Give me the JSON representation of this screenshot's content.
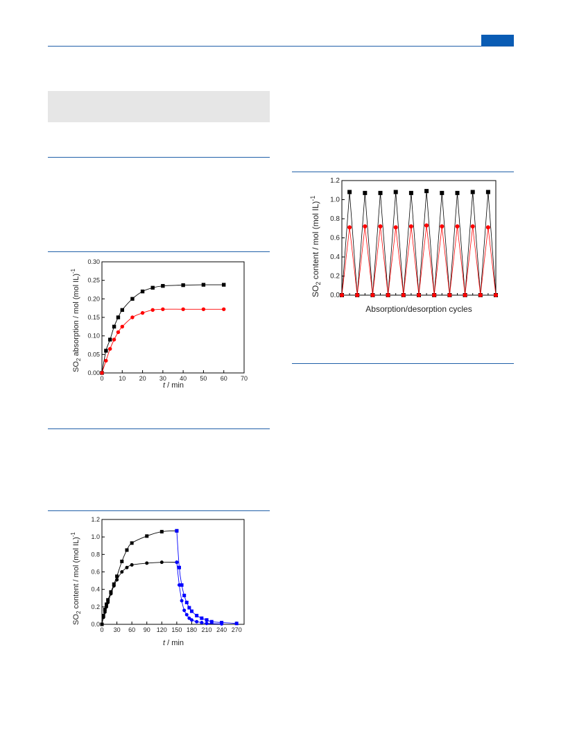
{
  "page": {
    "accent_color": "#1f5fa8",
    "tab_color": "#0a5cb4",
    "shade_color": "#e6e6e6"
  },
  "chart_data": [
    {
      "type": "scatter",
      "xlabel": "t / min",
      "ylabel": "SO2 absorption / mol (mol IL)-1",
      "xlim": [
        0,
        70
      ],
      "ylim": [
        0,
        0.3
      ],
      "xticks": [
        "0",
        "10",
        "20",
        "30",
        "40",
        "50",
        "60",
        "70"
      ],
      "yticks": [
        "0.00",
        "0.05",
        "0.10",
        "0.15",
        "0.20",
        "0.25",
        "0.30"
      ],
      "series": [
        {
          "marker": "square",
          "color": "#000000",
          "line_color": "#000000",
          "points": [
            [
              0,
              0
            ],
            [
              2,
              0.06
            ],
            [
              4,
              0.09
            ],
            [
              6,
              0.125
            ],
            [
              8,
              0.15
            ],
            [
              10,
              0.17
            ],
            [
              15,
              0.2
            ],
            [
              20,
              0.22
            ],
            [
              25,
              0.23
            ],
            [
              30,
              0.235
            ],
            [
              40,
              0.237
            ],
            [
              50,
              0.238
            ],
            [
              60,
              0.238
            ]
          ]
        },
        {
          "marker": "circle",
          "color": "#ff0000",
          "line_color": "#ff0000",
          "points": [
            [
              0,
              0
            ],
            [
              2,
              0.033
            ],
            [
              4,
              0.065
            ],
            [
              6,
              0.09
            ],
            [
              8,
              0.11
            ],
            [
              10,
              0.125
            ],
            [
              15,
              0.15
            ],
            [
              20,
              0.162
            ],
            [
              25,
              0.17
            ],
            [
              30,
              0.172
            ],
            [
              40,
              0.172
            ],
            [
              50,
              0.172
            ],
            [
              60,
              0.172
            ]
          ]
        }
      ]
    },
    {
      "type": "scatter",
      "xlabel": "t / min",
      "ylabel": "SO2 content / mol (mol IL)-1",
      "xlim": [
        0,
        285
      ],
      "ylim": [
        0,
        1.2
      ],
      "xticks": [
        "0",
        "30",
        "60",
        "90",
        "120",
        "150",
        "180",
        "210",
        "240",
        "270"
      ],
      "yticks": [
        "0.0",
        "0.2",
        "0.4",
        "0.6",
        "0.8",
        "1.0",
        "1.2"
      ],
      "series": [
        {
          "marker": "square",
          "color": "#000000",
          "line_color": "#000000",
          "points": [
            [
              0,
              0
            ],
            [
              3,
              0.1
            ],
            [
              6,
              0.17
            ],
            [
              9,
              0.23
            ],
            [
              12,
              0.28
            ],
            [
              18,
              0.37
            ],
            [
              24,
              0.46
            ],
            [
              30,
              0.55
            ],
            [
              40,
              0.72
            ],
            [
              50,
              0.85
            ],
            [
              60,
              0.93
            ],
            [
              90,
              1.01
            ],
            [
              120,
              1.06
            ],
            [
              150,
              1.07
            ]
          ]
        },
        {
          "marker": "circle",
          "color": "#000000",
          "line_color": "#000000",
          "points": [
            [
              0,
              0
            ],
            [
              3,
              0.08
            ],
            [
              6,
              0.14
            ],
            [
              9,
              0.2
            ],
            [
              12,
              0.25
            ],
            [
              18,
              0.35
            ],
            [
              24,
              0.44
            ],
            [
              30,
              0.51
            ],
            [
              40,
              0.6
            ],
            [
              50,
              0.65
            ],
            [
              60,
              0.68
            ],
            [
              90,
              0.7
            ],
            [
              120,
              0.71
            ],
            [
              150,
              0.71
            ]
          ]
        },
        {
          "marker": "square",
          "color": "#0000ff",
          "line_color": "#0000ff",
          "points": [
            [
              150,
              1.07
            ],
            [
              155,
              0.65
            ],
            [
              160,
              0.45
            ],
            [
              165,
              0.33
            ],
            [
              170,
              0.25
            ],
            [
              175,
              0.19
            ],
            [
              180,
              0.15
            ],
            [
              190,
              0.1
            ],
            [
              200,
              0.07
            ],
            [
              210,
              0.05
            ],
            [
              220,
              0.03
            ],
            [
              240,
              0.02
            ],
            [
              270,
              0.01
            ]
          ]
        },
        {
          "marker": "circle",
          "color": "#0000ff",
          "line_color": "#0000ff",
          "points": [
            [
              150,
              0.71
            ],
            [
              155,
              0.45
            ],
            [
              160,
              0.27
            ],
            [
              165,
              0.16
            ],
            [
              170,
              0.11
            ],
            [
              175,
              0.07
            ],
            [
              180,
              0.05
            ],
            [
              190,
              0.03
            ],
            [
              200,
              0.02
            ],
            [
              210,
              0.01
            ],
            [
              240,
              0.005
            ]
          ]
        }
      ]
    },
    {
      "type": "line",
      "xlabel": "Absorption/desorption cycles",
      "ylabel": "SO2 content / mol (mol IL)-1",
      "ylim": [
        0,
        1.2
      ],
      "yticks": [
        "0.0",
        "0.2",
        "0.4",
        "0.6",
        "0.8",
        "1.0",
        "1.2"
      ],
      "cycles": 10,
      "series": [
        {
          "marker": "square",
          "color": "#000000",
          "line_color": "#000000",
          "peaks": [
            1.08,
            1.07,
            1.07,
            1.08,
            1.07,
            1.09,
            1.07,
            1.07,
            1.08,
            1.08
          ]
        },
        {
          "marker": "circle",
          "color": "#ff0000",
          "line_color": "#ff0000",
          "peaks": [
            0.71,
            0.72,
            0.72,
            0.71,
            0.72,
            0.73,
            0.72,
            0.72,
            0.72,
            0.71
          ]
        }
      ]
    }
  ]
}
